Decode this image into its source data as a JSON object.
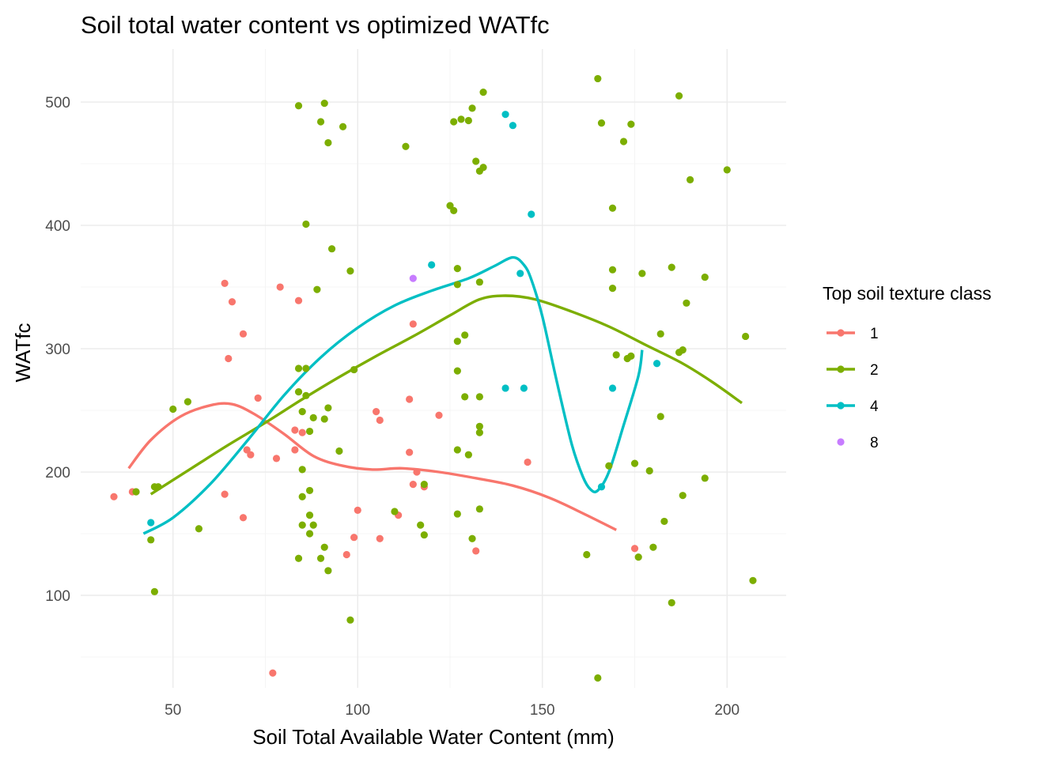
{
  "chart_data": {
    "type": "scatter",
    "title": "Soil total water content vs optimized WATfc",
    "xlabel": "Soil Total Available Water Content (mm)",
    "ylabel": "WATfc",
    "xlim": [
      25,
      216
    ],
    "ylim": [
      25,
      543
    ],
    "x_ticks": [
      50,
      100,
      150,
      200
    ],
    "y_ticks": [
      100,
      200,
      300,
      400,
      500
    ],
    "grid": true,
    "legend": {
      "title": "Top soil texture class",
      "placement": "right",
      "entries": [
        {
          "label": "1",
          "color": "#F8766D",
          "line": true
        },
        {
          "label": "2",
          "color": "#7CAE00",
          "line": true
        },
        {
          "label": "4",
          "color": "#00BFC4",
          "line": true
        },
        {
          "label": "8",
          "color": "#C77CFF",
          "line": false
        }
      ]
    },
    "series": [
      {
        "name": "1",
        "color": "#F8766D",
        "points": [
          [
            34,
            180
          ],
          [
            39,
            184
          ],
          [
            64,
            353
          ],
          [
            65,
            292
          ],
          [
            66,
            338
          ],
          [
            69,
            312
          ],
          [
            64,
            182
          ],
          [
            70,
            218
          ],
          [
            71,
            214
          ],
          [
            73,
            260
          ],
          [
            69,
            163
          ],
          [
            77,
            37
          ],
          [
            79,
            350
          ],
          [
            78,
            211
          ],
          [
            84,
            339
          ],
          [
            83,
            234
          ],
          [
            83,
            218
          ],
          [
            85,
            232
          ],
          [
            100,
            169
          ],
          [
            99,
            147
          ],
          [
            97,
            133
          ],
          [
            105,
            249
          ],
          [
            106,
            242
          ],
          [
            106,
            146
          ],
          [
            111,
            165
          ],
          [
            114,
            259
          ],
          [
            114,
            216
          ],
          [
            115,
            320
          ],
          [
            115,
            190
          ],
          [
            116,
            200
          ],
          [
            118,
            188
          ],
          [
            122,
            246
          ],
          [
            132,
            136
          ],
          [
            146,
            208
          ],
          [
            175,
            138
          ]
        ],
        "smooth": [
          [
            38,
            203
          ],
          [
            44,
            226
          ],
          [
            52,
            245
          ],
          [
            60,
            254
          ],
          [
            66,
            255
          ],
          [
            72,
            247
          ],
          [
            80,
            231
          ],
          [
            88,
            213
          ],
          [
            96,
            205
          ],
          [
            104,
            202
          ],
          [
            112,
            203
          ],
          [
            122,
            200
          ],
          [
            132,
            195
          ],
          [
            142,
            189
          ],
          [
            152,
            179
          ],
          [
            162,
            165
          ],
          [
            170,
            153
          ]
        ]
      },
      {
        "name": "2",
        "color": "#7CAE00",
        "points": [
          [
            40,
            184
          ],
          [
            44,
            145
          ],
          [
            45,
            188
          ],
          [
            45,
            103
          ],
          [
            46,
            188
          ],
          [
            50,
            251
          ],
          [
            54,
            257
          ],
          [
            57,
            154
          ],
          [
            84,
            497
          ],
          [
            84,
            284
          ],
          [
            84,
            130
          ],
          [
            84,
            265
          ],
          [
            85,
            249
          ],
          [
            85,
            202
          ],
          [
            85,
            180
          ],
          [
            86,
            284
          ],
          [
            85,
            157
          ],
          [
            86,
            401
          ],
          [
            86,
            262
          ],
          [
            87,
            150
          ],
          [
            87,
            185
          ],
          [
            87,
            165
          ],
          [
            87,
            233
          ],
          [
            88,
            244
          ],
          [
            88,
            157
          ],
          [
            89,
            348
          ],
          [
            90,
            130
          ],
          [
            90,
            484
          ],
          [
            91,
            139
          ],
          [
            91,
            499
          ],
          [
            91,
            243
          ],
          [
            92,
            120
          ],
          [
            92,
            467
          ],
          [
            92,
            252
          ],
          [
            93,
            381
          ],
          [
            95,
            217
          ],
          [
            96,
            480
          ],
          [
            98,
            363
          ],
          [
            98,
            80
          ],
          [
            99,
            283
          ],
          [
            110,
            168
          ],
          [
            113,
            464
          ],
          [
            117,
            157
          ],
          [
            118,
            190
          ],
          [
            118,
            149
          ],
          [
            125,
            416
          ],
          [
            126,
            484
          ],
          [
            126,
            412
          ],
          [
            127,
            365
          ],
          [
            127,
            306
          ],
          [
            127,
            282
          ],
          [
            127,
            352
          ],
          [
            127,
            218
          ],
          [
            127,
            166
          ],
          [
            128,
            486
          ],
          [
            129,
            311
          ],
          [
            129,
            261
          ],
          [
            130,
            485
          ],
          [
            130,
            214
          ],
          [
            131,
            495
          ],
          [
            131,
            146
          ],
          [
            132,
            452
          ],
          [
            133,
            444
          ],
          [
            133,
            354
          ],
          [
            133,
            261
          ],
          [
            133,
            237
          ],
          [
            133,
            170
          ],
          [
            133,
            232
          ],
          [
            134,
            447
          ],
          [
            134,
            508
          ],
          [
            162,
            133
          ],
          [
            165,
            519
          ],
          [
            165,
            33
          ],
          [
            166,
            483
          ],
          [
            168,
            205
          ],
          [
            169,
            349
          ],
          [
            169,
            364
          ],
          [
            169,
            414
          ],
          [
            170,
            295
          ],
          [
            172,
            468
          ],
          [
            173,
            292
          ],
          [
            174,
            482
          ],
          [
            174,
            294
          ],
          [
            175,
            207
          ],
          [
            176,
            131
          ],
          [
            177,
            361
          ],
          [
            179,
            201
          ],
          [
            180,
            139
          ],
          [
            182,
            312
          ],
          [
            182,
            245
          ],
          [
            183,
            160
          ],
          [
            185,
            366
          ],
          [
            185,
            94
          ],
          [
            187,
            505
          ],
          [
            187,
            297
          ],
          [
            188,
            181
          ],
          [
            188,
            299
          ],
          [
            189,
            337
          ],
          [
            190,
            437
          ],
          [
            194,
            358
          ],
          [
            194,
            195
          ],
          [
            200,
            445
          ],
          [
            205,
            310
          ],
          [
            207,
            112
          ]
        ],
        "smooth": [
          [
            44,
            182
          ],
          [
            55,
            203
          ],
          [
            65,
            222
          ],
          [
            75,
            240
          ],
          [
            85,
            259
          ],
          [
            95,
            277
          ],
          [
            105,
            294
          ],
          [
            115,
            310
          ],
          [
            125,
            327
          ],
          [
            133,
            340
          ],
          [
            140,
            343
          ],
          [
            148,
            340
          ],
          [
            158,
            330
          ],
          [
            168,
            318
          ],
          [
            178,
            303
          ],
          [
            188,
            288
          ],
          [
            196,
            273
          ],
          [
            204,
            256
          ]
        ]
      },
      {
        "name": "4",
        "color": "#00BFC4",
        "points": [
          [
            44,
            159
          ],
          [
            120,
            368
          ],
          [
            140,
            490
          ],
          [
            140,
            268
          ],
          [
            142,
            481
          ],
          [
            144,
            361
          ],
          [
            145,
            268
          ],
          [
            147,
            409
          ],
          [
            169,
            268
          ],
          [
            181,
            288
          ],
          [
            166,
            188
          ]
        ],
        "smooth": [
          [
            42,
            150
          ],
          [
            50,
            163
          ],
          [
            60,
            190
          ],
          [
            70,
            225
          ],
          [
            80,
            262
          ],
          [
            90,
            293
          ],
          [
            100,
            317
          ],
          [
            110,
            335
          ],
          [
            120,
            347
          ],
          [
            130,
            357
          ],
          [
            137,
            367
          ],
          [
            142,
            374
          ],
          [
            145,
            368
          ],
          [
            147,
            356
          ],
          [
            150,
            326
          ],
          [
            154,
            272
          ],
          [
            158,
            222
          ],
          [
            161,
            196
          ],
          [
            163,
            186
          ],
          [
            165,
            185
          ],
          [
            168,
            200
          ],
          [
            172,
            238
          ],
          [
            176,
            278
          ],
          [
            177,
            299
          ]
        ]
      },
      {
        "name": "8",
        "color": "#C77CFF",
        "points": [
          [
            115,
            357
          ]
        ],
        "smooth": []
      }
    ]
  }
}
